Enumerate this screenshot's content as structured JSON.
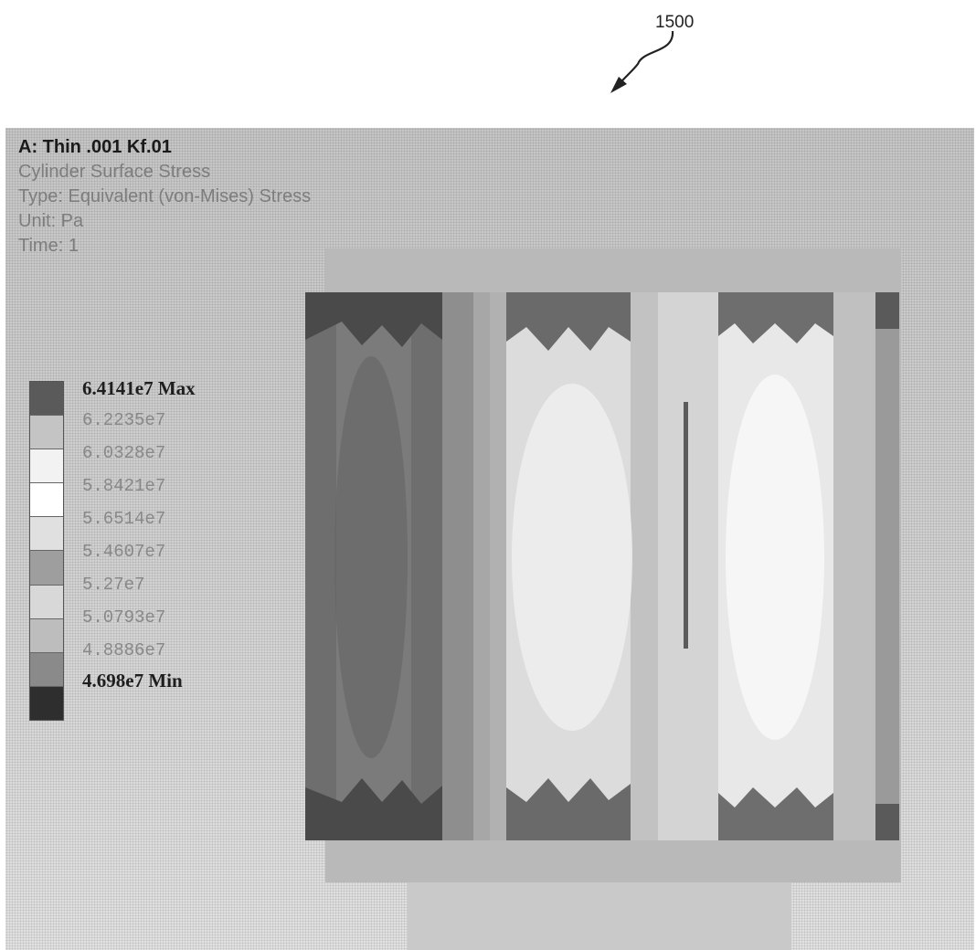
{
  "figure_ref": "1500",
  "info": {
    "title": "A: Thin .001 Kf.01",
    "result": "Cylinder Surface Stress",
    "type": "Type: Equivalent (von-Mises) Stress",
    "unit": "Unit: Pa",
    "time": "Time: 1"
  },
  "legend": {
    "labels": [
      "6.4141e7 Max",
      "6.2235e7",
      "6.0328e7",
      "5.8421e7",
      "5.6514e7",
      "5.4607e7",
      "5.27e7",
      "5.0793e7",
      "4.8886e7",
      "4.698e7 Min"
    ],
    "swatch_colors": [
      "#5a5a5a",
      "#c4c4c4",
      "#f2f2f2",
      "#ffffff",
      "#e0e0e0",
      "#9e9e9e",
      "#d8d8d8",
      "#bdbdbd",
      "#8a8a8a",
      "#2e2e2e"
    ]
  },
  "colors": {
    "background": "#cfcfcf",
    "band_dark": "#6d6d6d",
    "band_mid": "#a4a4a4",
    "band_light": "#e4e4e4"
  }
}
